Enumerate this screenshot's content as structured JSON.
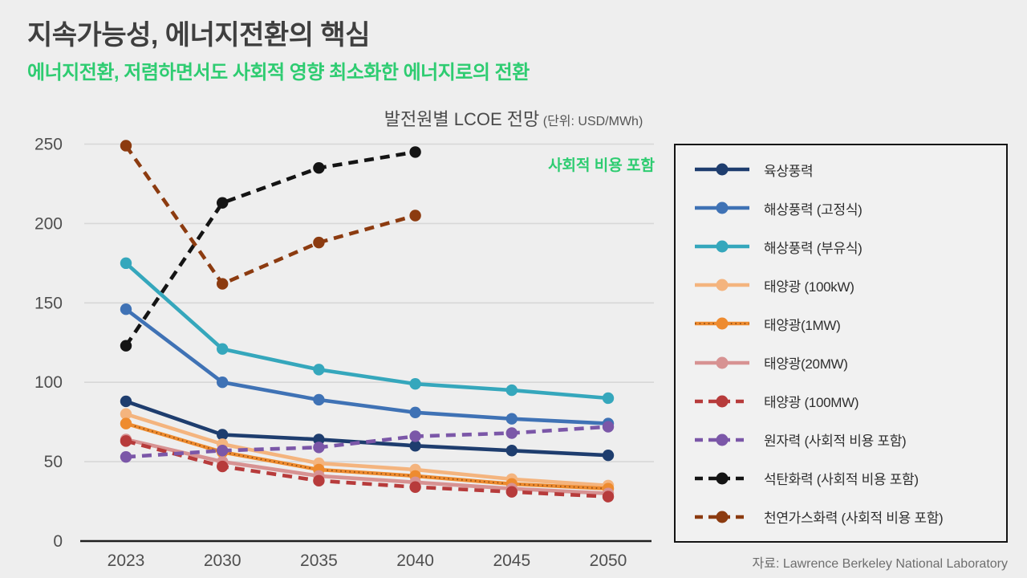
{
  "header": {
    "title": "지속가능성, 에너지전환의 핵심",
    "subtitle": "에너지전환, 저렴하면서도 사회적 영향 최소화한 에너지로의 전환"
  },
  "chart": {
    "title": "발전원별 LCOE 전망",
    "unit_label": "(단위: USD/MWh)",
    "annotation": "사회적 비용 포함",
    "source": "자료: Lawrence Berkeley National Laboratory"
  },
  "colors": {
    "accent_green": "#2ecc71",
    "title_gray": "#3f3f3f",
    "axis_gray": "#4f4f4f",
    "grid_gray": "#d7d7d7",
    "background": "#eeeeee"
  },
  "chart_data": {
    "type": "line",
    "title": "발전원별 LCOE 전망 (단위: USD/MWh)",
    "xlabel": "",
    "ylabel": "USD/MWh",
    "categories": [
      "2023",
      "2030",
      "2035",
      "2040",
      "2045",
      "2050"
    ],
    "yticks": [
      0,
      50,
      100,
      150,
      200,
      250
    ],
    "ylim": [
      0,
      250
    ],
    "grid": true,
    "legend_position": "right",
    "series": [
      {
        "name": "육상풍력",
        "color": "#1e3d6e",
        "style": "solid",
        "values": [
          88,
          67,
          64,
          60,
          57,
          54
        ]
      },
      {
        "name": "해상풍력 (고정식)",
        "color": "#3f72b5",
        "style": "solid",
        "values": [
          146,
          100,
          89,
          81,
          77,
          74
        ]
      },
      {
        "name": "해상풍력 (부유식)",
        "color": "#35a7bc",
        "style": "solid",
        "values": [
          175,
          121,
          108,
          99,
          95,
          90
        ]
      },
      {
        "name": "태양광 (100kW)",
        "color": "#f4b47e",
        "style": "solid",
        "values": [
          80,
          61,
          49,
          45,
          39,
          35
        ]
      },
      {
        "name": "태양광(1MW)",
        "color": "#ee8b2f",
        "style": "dotted",
        "values": [
          74,
          56,
          45,
          41,
          36,
          33
        ]
      },
      {
        "name": "태양광(20MW)",
        "color": "#d79292",
        "style": "solid",
        "values": [
          64,
          50,
          41,
          37,
          33,
          30
        ]
      },
      {
        "name": "태양광 (100MW)",
        "color": "#b73b3b",
        "style": "dashed",
        "values": [
          63,
          47,
          38,
          34,
          31,
          28
        ]
      },
      {
        "name": "원자력 (사회적 비용 포함)",
        "color": "#7b57a8",
        "style": "dashed",
        "values": [
          53,
          57,
          59,
          66,
          68,
          72
        ]
      },
      {
        "name": "석탄화력 (사회적 비용 포함)",
        "color": "#141414",
        "style": "dashed",
        "values": [
          123,
          213,
          235,
          245,
          null,
          null
        ]
      },
      {
        "name": "천연가스화력 (사회적 비용 포함)",
        "color": "#8c3b10",
        "style": "dashed",
        "values": [
          249,
          162,
          188,
          205,
          null,
          null
        ]
      }
    ]
  }
}
